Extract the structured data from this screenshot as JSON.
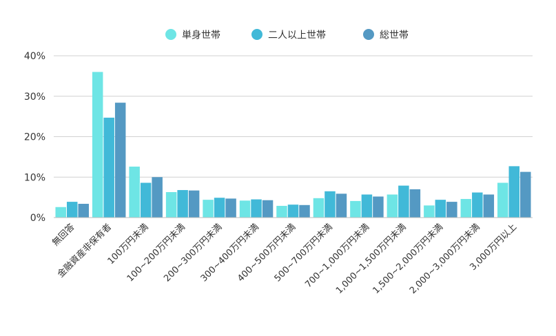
{
  "chart_data": {
    "type": "bar",
    "categories": [
      "無回答",
      "金融資産非保有者",
      "100万円未満",
      "100~200万円未満",
      "200~300万円未満",
      "300~400万円未満",
      "400~500万円未満",
      "500~700万円未満",
      "700~1,000万円未満",
      "1,000~1,500万円未満",
      "1,500~2,000万円未満",
      "2,000~3,000万円未満",
      "3,000万円以上"
    ],
    "series": [
      {
        "name": "単身世帯",
        "color": "#6ee5e5",
        "values": [
          2.6,
          36.0,
          12.6,
          6.3,
          4.4,
          4.2,
          2.9,
          4.8,
          4.1,
          5.7,
          3.0,
          4.6,
          8.6
        ]
      },
      {
        "name": "二人以上世帯",
        "color": "#41b9d8",
        "values": [
          3.9,
          24.7,
          8.6,
          6.8,
          4.9,
          4.5,
          3.2,
          6.5,
          5.7,
          7.9,
          4.4,
          6.2,
          12.7
        ]
      },
      {
        "name": "総世帯",
        "color": "#5499c3",
        "values": [
          3.4,
          28.4,
          10.0,
          6.7,
          4.7,
          4.3,
          3.1,
          5.9,
          5.2,
          7.0,
          3.9,
          5.7,
          11.3
        ]
      }
    ],
    "ylim": [
      0,
      40
    ],
    "yticks": [
      "0%",
      "10%",
      "20%",
      "30%",
      "40%"
    ],
    "ytick_values": [
      0,
      10,
      20,
      30,
      40
    ],
    "grid": true,
    "legend_position": "top-center",
    "title": "",
    "xlabel": "",
    "ylabel": ""
  }
}
